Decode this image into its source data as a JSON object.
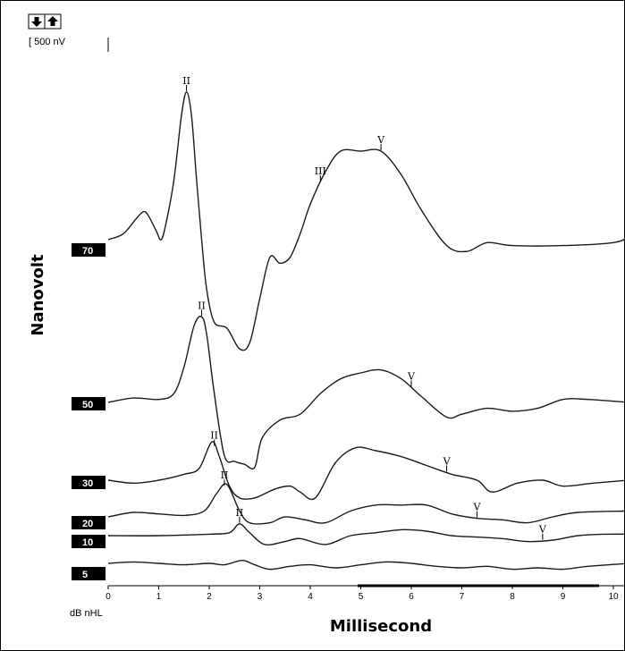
{
  "toolbar": {
    "down_icon": "arrow-down-icon",
    "up_icon": "arrow-up-icon"
  },
  "scale_label": "[ 500 nV",
  "colors": {
    "trace": "#1a1a1a",
    "label_bg": "#000000",
    "label_text": "#ffffff"
  },
  "chart_data": {
    "type": "line",
    "title": "",
    "xlabel": "Millisecond",
    "ylabel": "Nanovolt",
    "x_unit_label": "dB nHL",
    "xlim": [
      0,
      10.3
    ],
    "x_ticks": [
      "0",
      "1",
      "2",
      "3",
      "4",
      "5",
      "6",
      "7",
      "8",
      "9",
      "10"
    ],
    "grid": false,
    "series": [
      {
        "name": "70",
        "points": [
          [
            0,
            0
          ],
          [
            0.3,
            20
          ],
          [
            0.55,
            70
          ],
          [
            0.7,
            95
          ],
          [
            0.8,
            80
          ],
          [
            0.95,
            30
          ],
          [
            1.05,
            0
          ],
          [
            1.15,
            60
          ],
          [
            1.3,
            200
          ],
          [
            1.45,
            420
          ],
          [
            1.55,
            500
          ],
          [
            1.65,
            420
          ],
          [
            1.75,
            200
          ],
          [
            1.85,
            0
          ],
          [
            1.95,
            -170
          ],
          [
            2.1,
            -280
          ],
          [
            2.35,
            -300
          ],
          [
            2.6,
            -370
          ],
          [
            2.8,
            -350
          ],
          [
            3.0,
            -200
          ],
          [
            3.2,
            -60
          ],
          [
            3.4,
            -80
          ],
          [
            3.6,
            -60
          ],
          [
            3.8,
            20
          ],
          [
            4.0,
            120
          ],
          [
            4.3,
            230
          ],
          [
            4.6,
            300
          ],
          [
            5.0,
            300
          ],
          [
            5.4,
            300
          ],
          [
            5.8,
            220
          ],
          [
            6.2,
            100
          ],
          [
            6.7,
            -20
          ],
          [
            7.1,
            -40
          ],
          [
            7.5,
            -10
          ],
          [
            8.0,
            -20
          ],
          [
            9.0,
            -20
          ],
          [
            10.0,
            -10
          ],
          [
            10.3,
            10
          ]
        ],
        "peaks": [
          {
            "label": "II",
            "x": 1.55
          },
          {
            "label": "III",
            "x": 4.2
          },
          {
            "label": "V",
            "x": 5.4
          }
        ]
      },
      {
        "name": "50",
        "points": [
          [
            0,
            0
          ],
          [
            0.5,
            15
          ],
          [
            1.0,
            10
          ],
          [
            1.3,
            30
          ],
          [
            1.5,
            120
          ],
          [
            1.7,
            260
          ],
          [
            1.85,
            290
          ],
          [
            1.95,
            230
          ],
          [
            2.1,
            30
          ],
          [
            2.3,
            -180
          ],
          [
            2.5,
            -200
          ],
          [
            2.7,
            -210
          ],
          [
            2.9,
            -220
          ],
          [
            3.05,
            -120
          ],
          [
            3.4,
            -60
          ],
          [
            3.8,
            -40
          ],
          [
            4.2,
            30
          ],
          [
            4.6,
            80
          ],
          [
            5.0,
            100
          ],
          [
            5.4,
            110
          ],
          [
            5.8,
            80
          ],
          [
            6.2,
            20
          ],
          [
            6.7,
            -50
          ],
          [
            7.0,
            -40
          ],
          [
            7.5,
            -20
          ],
          [
            8.0,
            -30
          ],
          [
            8.5,
            -20
          ],
          [
            9.0,
            10
          ],
          [
            9.5,
            10
          ],
          [
            10.3,
            0
          ]
        ],
        "peaks": [
          {
            "label": "II",
            "x": 1.85
          },
          {
            "label": "V",
            "x": 6.0
          }
        ]
      },
      {
        "name": "30",
        "points": [
          [
            0,
            0
          ],
          [
            0.5,
            -10
          ],
          [
            1.0,
            0
          ],
          [
            1.5,
            20
          ],
          [
            1.8,
            40
          ],
          [
            2.05,
            130
          ],
          [
            2.2,
            80
          ],
          [
            2.4,
            -20
          ],
          [
            2.6,
            -60
          ],
          [
            2.9,
            -60
          ],
          [
            3.3,
            -30
          ],
          [
            3.6,
            -20
          ],
          [
            3.8,
            -40
          ],
          [
            4.1,
            -60
          ],
          [
            4.5,
            60
          ],
          [
            4.9,
            110
          ],
          [
            5.3,
            100
          ],
          [
            5.8,
            80
          ],
          [
            6.3,
            50
          ],
          [
            6.8,
            20
          ],
          [
            7.3,
            0
          ],
          [
            7.6,
            -40
          ],
          [
            8.1,
            -10
          ],
          [
            8.6,
            0
          ],
          [
            9.0,
            -20
          ],
          [
            9.6,
            -10
          ],
          [
            10.3,
            0
          ]
        ],
        "peaks": [
          {
            "label": "II",
            "x": 2.1
          },
          {
            "label": "V",
            "x": 6.7
          }
        ]
      },
      {
        "name": "20",
        "points": [
          [
            0,
            0
          ],
          [
            0.5,
            15
          ],
          [
            1.0,
            10
          ],
          [
            1.5,
            5
          ],
          [
            1.9,
            20
          ],
          [
            2.15,
            80
          ],
          [
            2.35,
            110
          ],
          [
            2.6,
            20
          ],
          [
            2.8,
            -20
          ],
          [
            3.2,
            -20
          ],
          [
            3.5,
            0
          ],
          [
            3.9,
            -10
          ],
          [
            4.3,
            -20
          ],
          [
            4.8,
            20
          ],
          [
            5.3,
            40
          ],
          [
            5.8,
            40
          ],
          [
            6.3,
            40
          ],
          [
            6.8,
            10
          ],
          [
            7.3,
            -5
          ],
          [
            7.8,
            -10
          ],
          [
            8.3,
            -20
          ],
          [
            8.8,
            0
          ],
          [
            9.3,
            15
          ],
          [
            10.3,
            20
          ]
        ],
        "peaks": [
          {
            "label": "II",
            "x": 2.3
          },
          {
            "label": "V",
            "x": 7.3
          }
        ]
      },
      {
        "name": "10",
        "points": [
          [
            0,
            0
          ],
          [
            1.0,
            0
          ],
          [
            2.0,
            5
          ],
          [
            2.4,
            10
          ],
          [
            2.6,
            40
          ],
          [
            2.8,
            10
          ],
          [
            3.1,
            -30
          ],
          [
            3.5,
            -20
          ],
          [
            3.8,
            -10
          ],
          [
            4.3,
            -30
          ],
          [
            4.8,
            0
          ],
          [
            5.3,
            10
          ],
          [
            5.8,
            20
          ],
          [
            6.3,
            15
          ],
          [
            6.8,
            0
          ],
          [
            7.3,
            -5
          ],
          [
            7.8,
            -10
          ],
          [
            8.3,
            -20
          ],
          [
            8.8,
            -15
          ],
          [
            9.3,
            0
          ],
          [
            9.8,
            5
          ],
          [
            10.3,
            5
          ]
        ],
        "peaks": [
          {
            "label": "II",
            "x": 2.6
          },
          {
            "label": "V",
            "x": 8.6
          }
        ]
      },
      {
        "name": "5",
        "points": [
          [
            0,
            0
          ],
          [
            0.5,
            5
          ],
          [
            1.0,
            0
          ],
          [
            1.5,
            -5
          ],
          [
            2.0,
            0
          ],
          [
            2.3,
            -5
          ],
          [
            2.65,
            10
          ],
          [
            2.9,
            -5
          ],
          [
            3.2,
            -20
          ],
          [
            3.6,
            -10
          ],
          [
            4.0,
            -5
          ],
          [
            4.5,
            -15
          ],
          [
            5.0,
            -5
          ],
          [
            5.5,
            5
          ],
          [
            6.0,
            0
          ],
          [
            6.5,
            -10
          ],
          [
            7.0,
            -15
          ],
          [
            7.5,
            -10
          ],
          [
            8.0,
            -20
          ],
          [
            8.5,
            -15
          ],
          [
            9.0,
            -20
          ],
          [
            9.5,
            -10
          ],
          [
            10.3,
            0
          ]
        ],
        "peaks": []
      }
    ]
  }
}
